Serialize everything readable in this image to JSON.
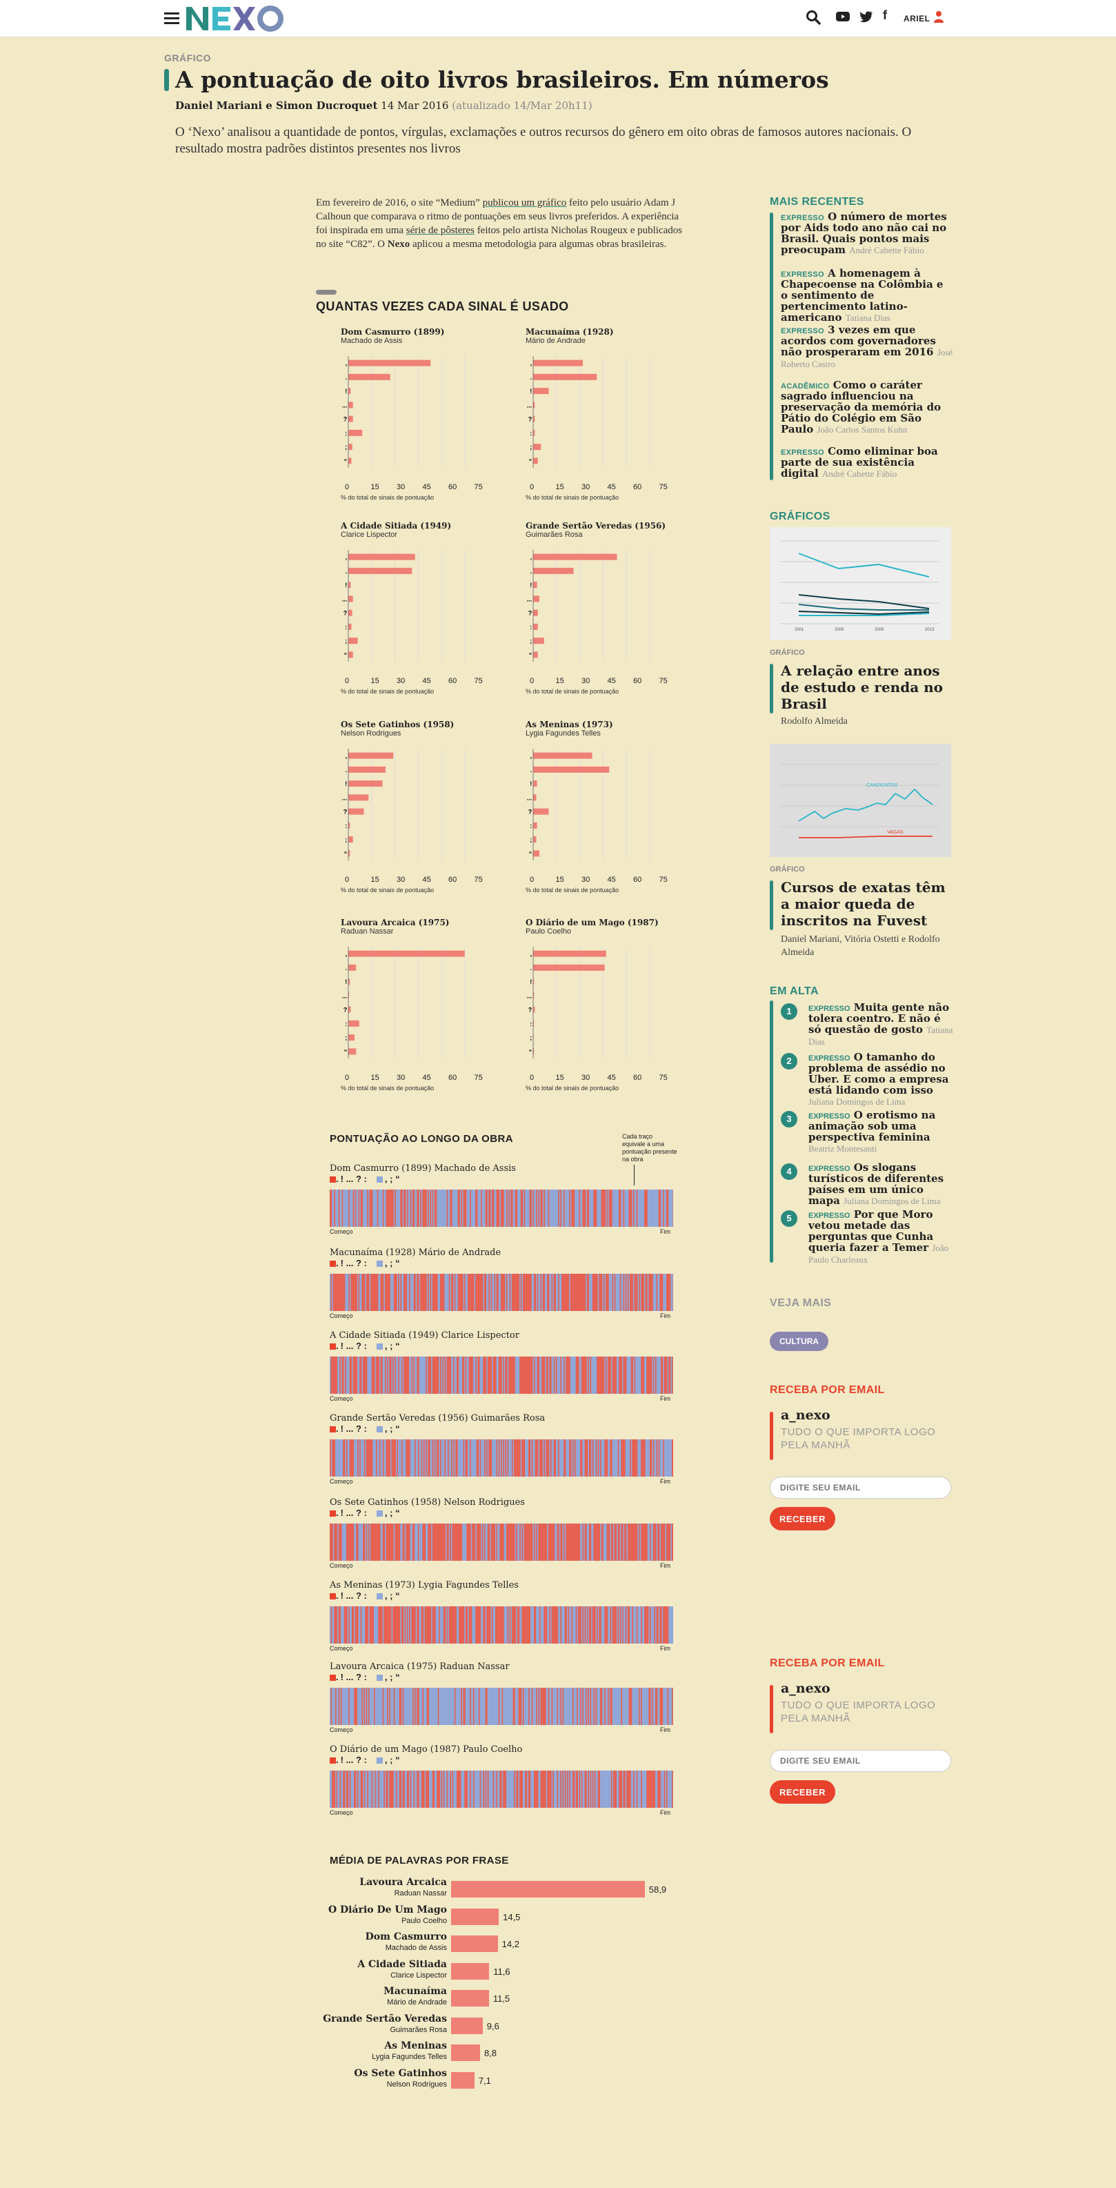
{
  "header": {
    "user": "ARIEL"
  },
  "article": {
    "kicker": "GRÁFICO",
    "title": "A pontuação de oito livros brasileiros. Em números",
    "authors": "Daniel Mariani e Simon Ducroquet",
    "date": "14 Mar 2016",
    "updated": "(atualizado 14/Mar 20h11)",
    "lede": "O ‘Nexo’ analisou a quantidade de pontos, vírgulas, exclamações e outros recursos do gênero em oito obras de famosos autores nacionais. O resultado mostra padrões distintos presentes nos livros",
    "intro_1": "Em fevereiro de 2016, o site “Medium”",
    "intro_link1": "publicou um gráfico",
    "intro_2": "feito pelo usuário Adam J Calhoun que comparava o ritmo de pontuações em seus livros preferidos. A experiência foi inspirada em uma",
    "intro_link2": "série de pôsteres",
    "intro_3": "feitos pelo artista Nicholas Rougeux e publicados no site “C82”. O",
    "intro_bold": "Nexo",
    "intro_4": "aplicou a mesma metodologia para algumas obras brasileiras."
  },
  "chart_data": [
    {
      "type": "bar",
      "title": "QUANTAS VEZES CADA SINAL É USADO",
      "orientation": "horizontal",
      "categories": [
        ",",
        ".",
        "!",
        "...",
        "?",
        ":",
        ";",
        "“"
      ],
      "xticks": [
        0,
        15,
        30,
        45,
        60,
        75
      ],
      "xlim": [
        0,
        80
      ],
      "xlabel": "% do total de sinais de pontuação",
      "panels": [
        {
          "title": "Dom Casmurro (1899)",
          "author": "Machado de Assis",
          "values": [
            53,
            27,
            1.5,
            3,
            3,
            9,
            2.5,
            2
          ]
        },
        {
          "title": "Macunaíma (1928)",
          "author": "Mário de Andrade",
          "values": [
            32,
            41,
            10,
            1,
            1,
            1,
            5,
            3
          ]
        },
        {
          "title": "A Cidade Sitiada (1949)",
          "author": "Clarice Lispector",
          "values": [
            43,
            41,
            1.5,
            3,
            2.5,
            2,
            6,
            3
          ]
        },
        {
          "title": "Grande Sertão Veredas (1956)",
          "author": "Guimarães Rosa",
          "values": [
            54,
            26,
            2.5,
            4,
            3,
            3,
            7,
            3
          ]
        },
        {
          "title": "Os Sete Gatinhos (1958)",
          "author": "Nelson Rodrigues",
          "values": [
            29,
            24,
            22,
            13,
            10,
            1,
            3,
            1
          ]
        },
        {
          "title": "As Meninas (1973)",
          "author": "Lygia Fagundes Telles",
          "values": [
            38,
            49,
            2.5,
            2,
            10,
            2.5,
            2,
            4
          ]
        },
        {
          "title": "Lavoura Arcaica (1975)",
          "author": "Raduan Nassar",
          "values": [
            75,
            5,
            1,
            0.5,
            1.5,
            7,
            4,
            5
          ]
        },
        {
          "title": "O Diário de um Mago (1987)",
          "author": "Paulo Coelho",
          "values": [
            47,
            46,
            0.5,
            0.5,
            1,
            0.5,
            0.3,
            0.5
          ]
        }
      ]
    },
    {
      "type": "heatmap",
      "title": "PONTUAÇÃO AO LONGO DA OBRA",
      "annotation": "Cada traço equivale a uma pontuação presente na obra",
      "legend": ".",
      "legend_tail": "! ... ? :",
      "legend_tail2": ", ; “",
      "start_label": "Começo",
      "end_label": "Fim",
      "series": [
        {
          "title": "Dom Casmurro (1899) Machado de Assis",
          "comma_share": 0.53
        },
        {
          "title": "Macunaíma (1928) Mário de Andrade",
          "comma_share": 0.32
        },
        {
          "title": "A Cidade Sitiada (1949) Clarice Lispector",
          "comma_share": 0.43
        },
        {
          "title": "Grande Sertão Veredas (1956) Guimarães Rosa",
          "comma_share": 0.54
        },
        {
          "title": "Os Sete Gatinhos (1958) Nelson Rodrigues",
          "comma_share": 0.29
        },
        {
          "title": "As Meninas (1973) Lygia Fagundes Telles",
          "comma_share": 0.38
        },
        {
          "title": "Lavoura Arcaica (1975) Raduan Nassar",
          "comma_share": 0.75
        },
        {
          "title": "O Diário de um Mago (1987) Paulo Coelho",
          "comma_share": 0.47
        }
      ]
    },
    {
      "type": "bar",
      "title": "MÉDIA DE PALAVRAS POR FRASE",
      "orientation": "horizontal",
      "xlim": [
        0,
        60
      ],
      "categories": [
        "Lavoura Arcaica",
        "O Diário De Um Mago",
        "Dom Casmurro",
        "A Cidade Sitiada",
        "Macunaíma",
        "Grande Sertão Veredas",
        "As Meninas",
        "Os Sete Gatinhos"
      ],
      "subtitles": [
        "Raduan Nassar",
        "Paulo Coelho",
        "Machado de Assis",
        "Clarice Lispector",
        "Mário de Andrade",
        "Guimarães Rosa",
        "Lygia Fagundes Telles",
        "Nelson Rodrigues"
      ],
      "values": [
        58.9,
        14.5,
        14.2,
        11.6,
        11.5,
        9.6,
        8.8,
        7.1
      ],
      "labels": [
        "58,9",
        "14,5",
        "14,2",
        "11,6",
        "11,5",
        "9,6",
        "8,8",
        "7,1"
      ]
    }
  ],
  "colors": {
    "background": "#f2e9c6",
    "bar": "#ef8076",
    "teal": "#2a8a7e",
    "red": "#e8412c",
    "blue": "#8fa9d9"
  },
  "sidebar": {
    "recent_header": "MAIS RECENTES",
    "recent": [
      {
        "tag": "EXPRESSO",
        "title": "O número de mortes por Aids todo ano não cai no Brasil. Quais pontos mais preocupam",
        "author": "André Cabette Fábio"
      },
      {
        "tag": "EXPRESSO",
        "title": "A homenagem à Chapecoense na Colômbia e o sentimento de pertencimento latino-americano",
        "author": "Tatiana Dias"
      },
      {
        "tag": "EXPRESSO",
        "title": "3 vezes em que acordos com governadores não prosperaram em 2016",
        "author": "José Roberto Castro"
      },
      {
        "tag": "ACADÊMICO",
        "title": "Como o caráter sagrado influenciou na preservação da memória do Pátio do Colégio em São Paulo",
        "author": "João Carlos Santos Kuhn"
      },
      {
        "tag": "EXPRESSO",
        "title": "Como eliminar boa parte de sua existência digital",
        "author": "André Cabette Fábio"
      }
    ],
    "graphics_header": "GRÁFICOS",
    "graphics": [
      {
        "kicker": "GRÁFICO",
        "title": "A relação entre anos de estudo e renda no Brasil",
        "author": "Rodolfo Almeida",
        "thumb_years": [
          "2001",
          "2005",
          "2009",
          "2013"
        ]
      },
      {
        "kicker": "GRÁFICO",
        "title": "Cursos de exatas têm a maior queda de inscritos na Fuvest",
        "author": "Daniel Mariani, Vitória Ostetti e Rodolfo Almeida",
        "thumb_labels": [
          "CANDIDATOS",
          "VAGAS"
        ]
      }
    ],
    "hot_header": "EM ALTA",
    "hot": [
      {
        "n": "1",
        "tag": "EXPRESSO",
        "title": "Muita gente não tolera coentro. E não é só questão de gosto",
        "author": "Tatiana Dias"
      },
      {
        "n": "2",
        "tag": "EXPRESSO",
        "title": "O tamanho do problema de assédio no Uber. E como a empresa está lidando com isso",
        "author": "Juliana Domingos de Lima"
      },
      {
        "n": "3",
        "tag": "EXPRESSO",
        "title": "O erotismo na animação sob uma perspectiva feminina",
        "author": "Beatriz Montesanti"
      },
      {
        "n": "4",
        "tag": "EXPRESSO",
        "title": "Os slogans turísticos de diferentes países em um único mapa",
        "author": "Juliana Domingos de Lima"
      },
      {
        "n": "5",
        "tag": "EXPRESSO",
        "title": "Por que Moro vetou metade das perguntas que Cunha queria fazer a Temer",
        "author": "João Paulo Charleaux"
      }
    ],
    "more_header": "VEJA MAIS",
    "more_tag": "CULTURA",
    "newsletter": {
      "header": "RECEBA POR EMAIL",
      "name": "a_nexo",
      "desc": "TUDO O QUE IMPORTA LOGO PELA MANHÃ",
      "placeholder": "DIGITE SEU EMAIL",
      "button": "RECEBER"
    }
  }
}
